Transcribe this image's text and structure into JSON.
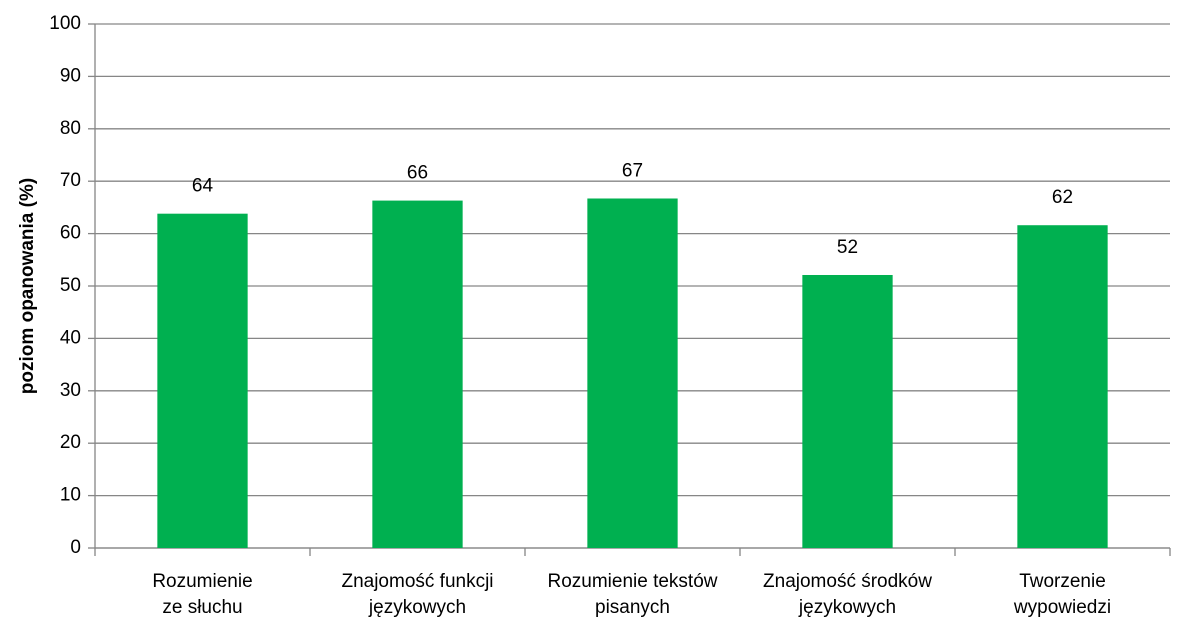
{
  "chart_data": {
    "type": "bar",
    "y_axis_label": "poziom opanowania (%)",
    "categories": [
      "Rozumienie\nze słuchu",
      "Znajomość funkcji\njęzykowych",
      "Rozumienie tekstów\npisanych",
      "Znajomość środków\njęzykowych",
      "Tworzenie\nwypowiedzi"
    ],
    "values": [
      63.8,
      66.3,
      66.7,
      52.1,
      61.6
    ],
    "value_labels": [
      "64",
      "66",
      "67",
      "52",
      "62"
    ],
    "color": "#00b050",
    "ylim": [
      0,
      100
    ],
    "yticks": [
      0,
      10,
      20,
      30,
      40,
      50,
      60,
      70,
      80,
      90,
      100
    ],
    "grid": true
  }
}
